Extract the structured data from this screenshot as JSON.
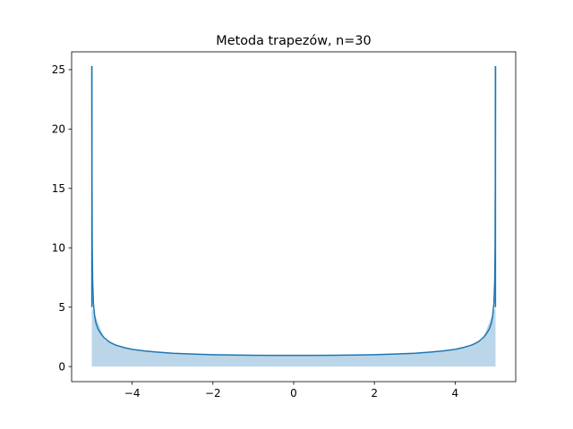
{
  "chart_data": {
    "type": "line",
    "title": "Metoda trapezów, n=30",
    "xlabel": "",
    "ylabel": "",
    "xlim": [
      -5.5,
      5.5
    ],
    "ylim": [
      -1.27,
      26.5
    ],
    "x_ticks": [
      -4,
      -2,
      0,
      2,
      4
    ],
    "x_tick_labels": [
      "−4",
      "−2",
      "0",
      "2",
      "4"
    ],
    "y_ticks": [
      0,
      5,
      10,
      15,
      20,
      25
    ],
    "y_tick_labels": [
      "0",
      "5",
      "10",
      "15",
      "20",
      "25"
    ],
    "grid": false,
    "series": [
      {
        "kind": "line",
        "color": "#1f77b4",
        "x": [
          -4.999,
          -4.995,
          -4.99,
          -4.98,
          -4.96,
          -4.93,
          -4.9,
          -4.85,
          -4.8,
          -4.75,
          -4.7,
          -4.6,
          -4.5,
          -4.4,
          -4.2,
          -4.0,
          -3.7,
          -3.4,
          -3.0,
          -2.5,
          -2.0,
          -1.5,
          -1.0,
          -0.5,
          0.0,
          0.5,
          1.0,
          1.5,
          2.0,
          2.5,
          3.0,
          3.4,
          3.7,
          4.0,
          4.2,
          4.4,
          4.5,
          4.6,
          4.7,
          4.75,
          4.8,
          4.85,
          4.9,
          4.93,
          4.96,
          4.98,
          4.99,
          4.995,
          4.999
        ],
        "y": [
          25.3,
          15.9,
          10.3,
          7.2,
          5.3,
          4.3,
          3.7,
          3.2,
          2.9,
          2.65,
          2.45,
          2.15,
          1.95,
          1.8,
          1.6,
          1.45,
          1.32,
          1.22,
          1.12,
          1.05,
          1.0,
          0.97,
          0.95,
          0.94,
          0.94,
          0.94,
          0.95,
          0.97,
          1.0,
          1.05,
          1.12,
          1.22,
          1.32,
          1.45,
          1.6,
          1.8,
          1.95,
          2.15,
          2.45,
          2.65,
          2.9,
          3.2,
          3.7,
          4.3,
          5.3,
          7.2,
          10.3,
          15.9,
          25.3
        ]
      },
      {
        "kind": "segment",
        "color": "#1f77b4",
        "x": [
          -4.999,
          -4.999
        ],
        "y": [
          5.0,
          25.3
        ]
      },
      {
        "kind": "segment",
        "color": "#1f77b4",
        "x": [
          4.999,
          4.999
        ],
        "y": [
          5.0,
          25.3
        ]
      },
      {
        "kind": "area",
        "color": "#1f77b4",
        "alpha": 0.3,
        "x": [
          -5.0,
          -4.667,
          -4.333,
          -4.0,
          -3.667,
          -3.333,
          -3.0,
          -2.667,
          -2.333,
          -2.0,
          -1.667,
          -1.333,
          -1.0,
          -0.667,
          -0.333,
          0.0,
          0.333,
          0.667,
          1.0,
          1.333,
          1.667,
          2.0,
          2.333,
          2.667,
          3.0,
          3.333,
          3.667,
          4.0,
          4.333,
          4.667,
          5.0
        ],
        "y": [
          5.0,
          2.2,
          1.7,
          1.45,
          1.32,
          1.22,
          1.12,
          1.07,
          1.03,
          1.0,
          0.98,
          0.96,
          0.95,
          0.94,
          0.94,
          0.94,
          0.94,
          0.94,
          0.95,
          0.96,
          0.98,
          1.0,
          1.03,
          1.07,
          1.12,
          1.22,
          1.32,
          1.45,
          1.7,
          2.2,
          5.0
        ]
      }
    ]
  }
}
